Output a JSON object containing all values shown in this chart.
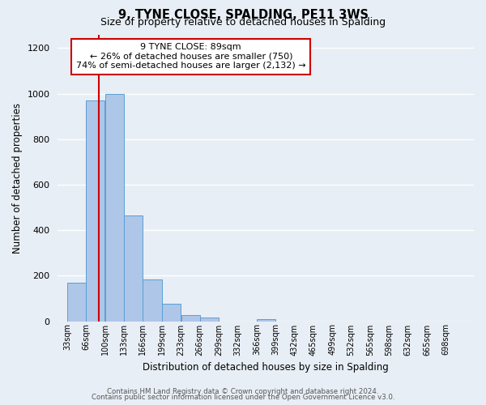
{
  "title": "9, TYNE CLOSE, SPALDING, PE11 3WS",
  "subtitle": "Size of property relative to detached houses in Spalding",
  "xlabel": "Distribution of detached houses by size in Spalding",
  "ylabel": "Number of detached properties",
  "bin_edges": [
    33,
    66,
    100,
    133,
    166,
    199,
    233,
    266,
    299,
    332,
    366,
    399,
    432,
    465,
    499,
    532,
    565,
    598,
    632,
    665,
    698,
    731
  ],
  "bin_labels": [
    "33sqm",
    "66sqm",
    "100sqm",
    "133sqm",
    "166sqm",
    "199sqm",
    "233sqm",
    "266sqm",
    "299sqm",
    "332sqm",
    "366sqm",
    "399sqm",
    "432sqm",
    "465sqm",
    "499sqm",
    "532sqm",
    "565sqm",
    "598sqm",
    "632sqm",
    "665sqm",
    "698sqm"
  ],
  "bar_heights": [
    170,
    970,
    1000,
    465,
    185,
    75,
    25,
    15,
    0,
    0,
    10,
    0,
    0,
    0,
    0,
    0,
    0,
    0,
    0,
    0,
    0
  ],
  "bar_color": "#aec6e8",
  "bar_edge_color": "#5a9fd4",
  "ylim": [
    0,
    1260
  ],
  "yticks": [
    0,
    200,
    400,
    600,
    800,
    1000,
    1200
  ],
  "property_size_sqm": 89,
  "annotation_title": "9 TYNE CLOSE: 89sqm",
  "annotation_line1": "← 26% of detached houses are smaller (750)",
  "annotation_line2": "74% of semi-detached houses are larger (2,132) →",
  "annotation_box_color": "#ffffff",
  "annotation_box_edge_color": "#cc0000",
  "red_line_color": "#cc0000",
  "footer_line1": "Contains HM Land Registry data © Crown copyright and database right 2024.",
  "footer_line2": "Contains public sector information licensed under the Open Government Licence v3.0.",
  "background_color": "#e8eef5",
  "grid_color": "#ffffff"
}
